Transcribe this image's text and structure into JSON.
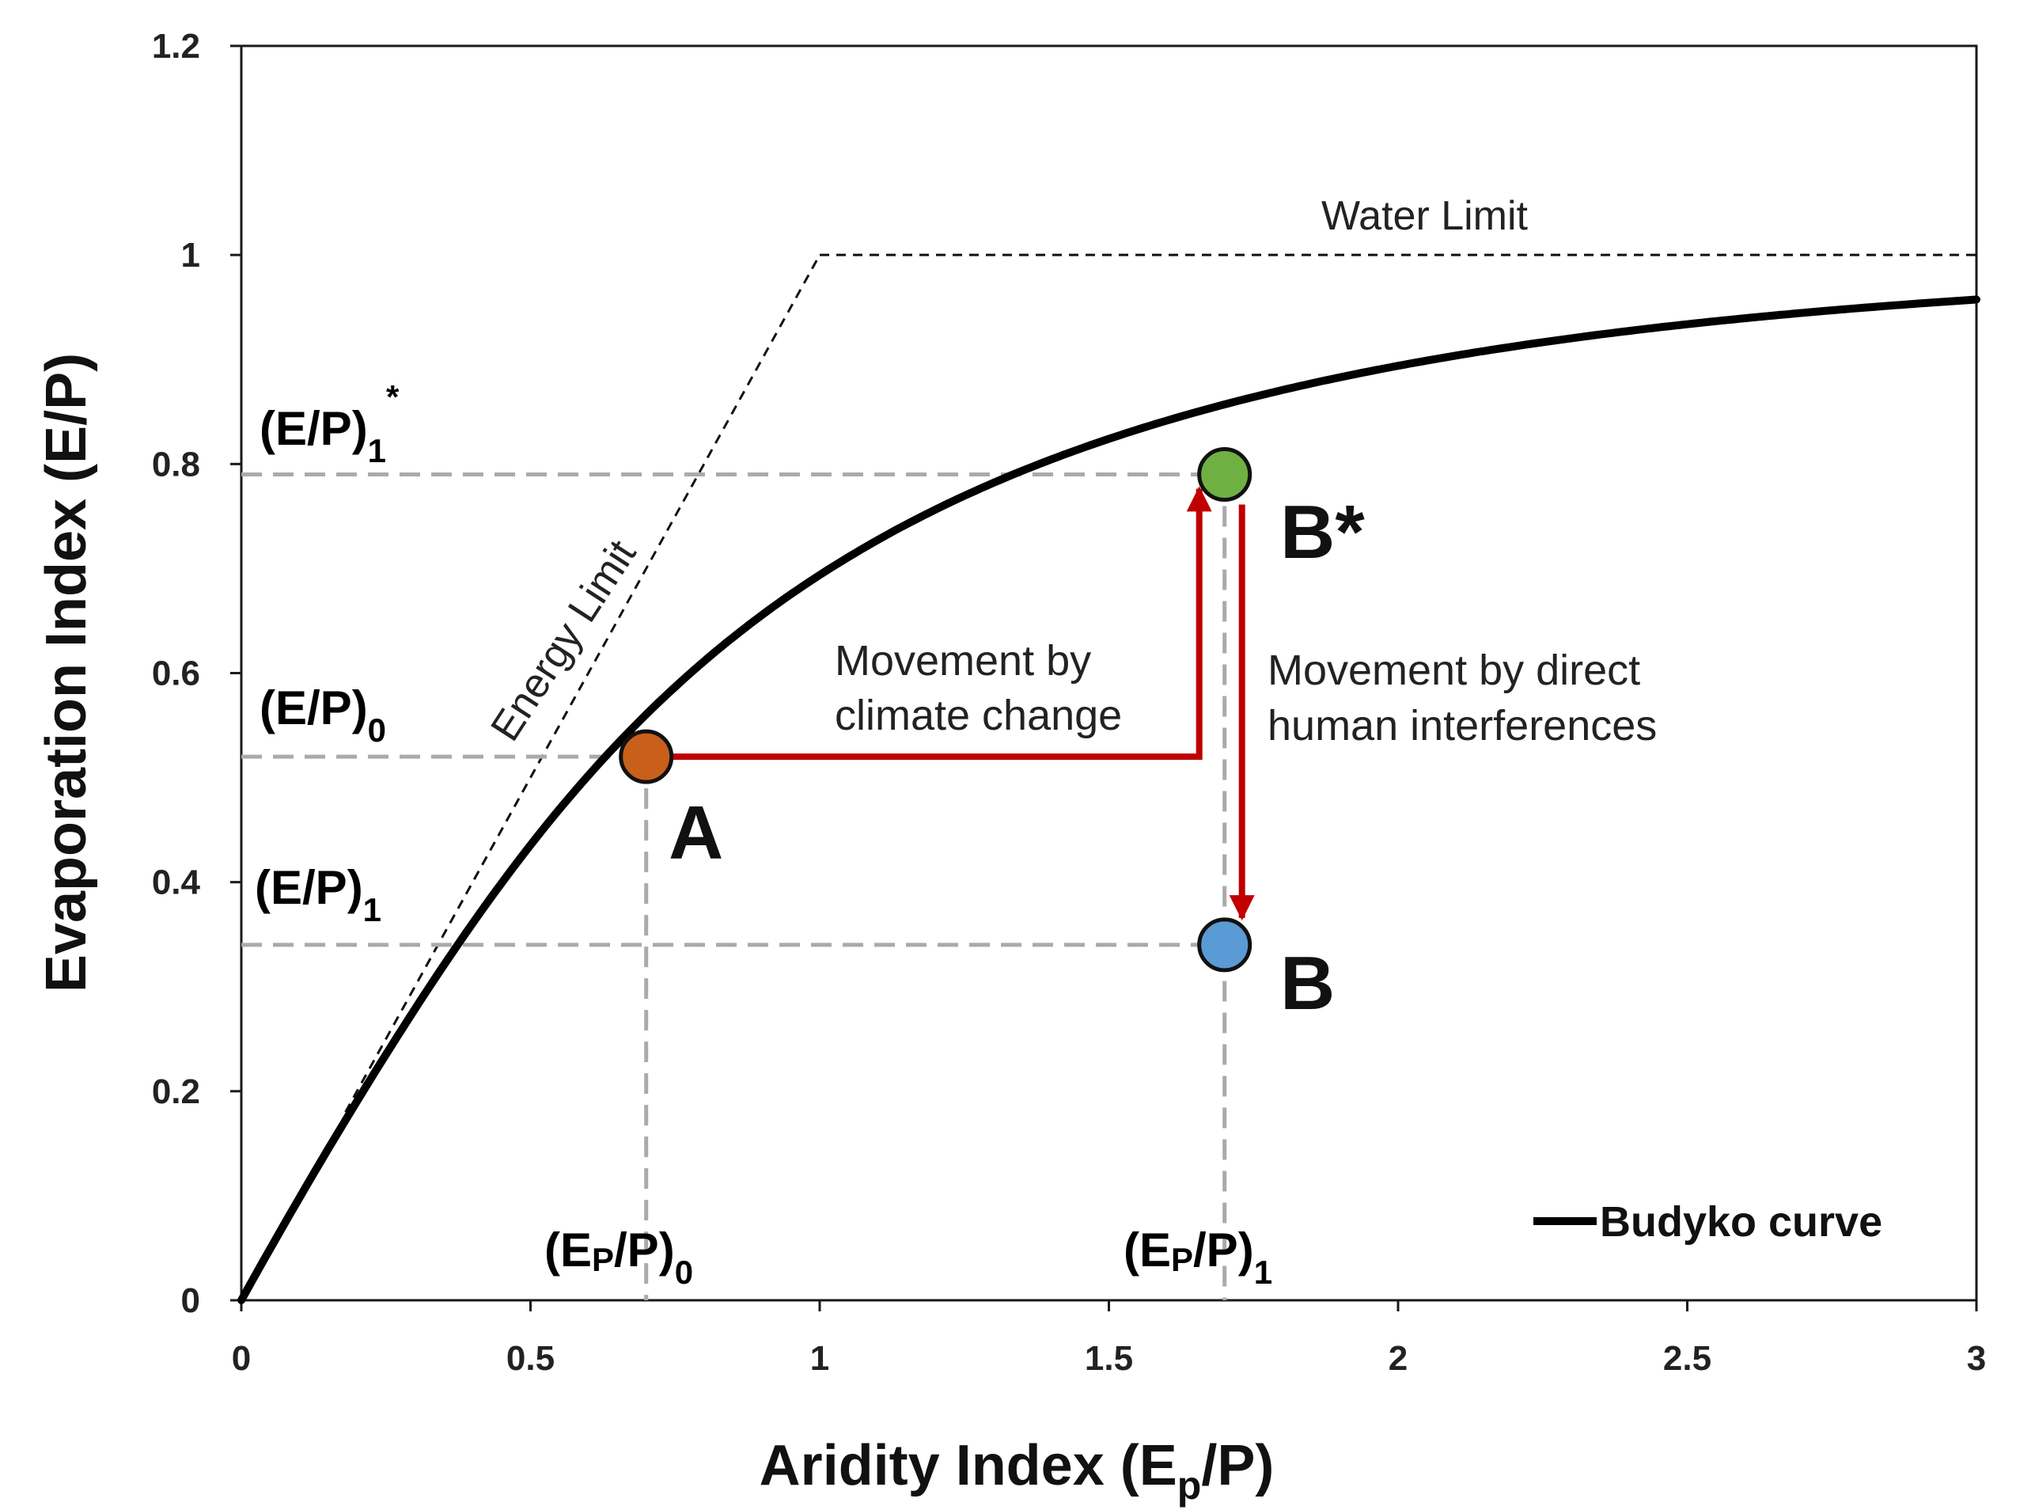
{
  "chart_data": {
    "type": "line",
    "title": "",
    "xlabel": {
      "main": "Aridity Index (E",
      "sub": "p",
      "tail": "/P)"
    },
    "ylabel": "Evaporation Index (E/P)",
    "xlim": [
      0,
      3
    ],
    "ylim": [
      0,
      1.2
    ],
    "xticks": [
      "0",
      "0.5",
      "1",
      "1.5",
      "2",
      "2.5",
      "3"
    ],
    "xtick_values": [
      0,
      0.5,
      1,
      1.5,
      2,
      2.5,
      3
    ],
    "yticks": [
      "0",
      "0.2",
      "0.4",
      "0.6",
      "0.8",
      "1",
      "1.2"
    ],
    "ytick_values": [
      0,
      0.2,
      0.4,
      0.6,
      0.8,
      1.0,
      1.2
    ],
    "grid": false,
    "series": [
      {
        "name": "Budyko curve",
        "kind": "budyko",
        "x_range": [
          0,
          3
        ],
        "color": "#000000"
      }
    ],
    "limits": {
      "energy": {
        "label": "Energy Limit",
        "x": [
          0.18,
          1.0
        ],
        "y": [
          0.18,
          1.0
        ]
      },
      "water": {
        "label": "Water Limit",
        "x": [
          1.0,
          3.0
        ],
        "y": [
          1.0,
          1.0
        ]
      }
    },
    "points": [
      {
        "label": "A",
        "x": 0.7,
        "y": 0.52,
        "color": "#c8601c"
      },
      {
        "label": "B*",
        "x": 1.7,
        "y": 0.79,
        "color": "#6fb043"
      },
      {
        "label": "B",
        "x": 1.7,
        "y": 0.34,
        "color": "#5b9bd5"
      }
    ],
    "reference_labels": {
      "ep_p0": {
        "main": "(E",
        "sub": "P",
        "close": "/P)",
        "index": "0",
        "x": 0.7
      },
      "ep_p1": {
        "main": "(E",
        "sub": "P",
        "close": "/P)",
        "index": "1",
        "x": 1.7
      },
      "ep0": {
        "main": "(E/P)",
        "index": "0",
        "y": 0.52
      },
      "ep1star": {
        "main": "(E/P)",
        "index": "1",
        "star": "*",
        "y": 0.79
      },
      "ep1": {
        "main": "(E/P)",
        "index": "1",
        "y": 0.34
      }
    },
    "annotations": {
      "climate": [
        "Movement by",
        "climate change"
      ],
      "human": [
        "Movement by direct",
        "human interferences"
      ]
    },
    "legend": {
      "label": "Budyko curve",
      "position": "bottom-right"
    },
    "colors": {
      "curve": "#000000",
      "arrow": "#c00000",
      "red_text": "#c00000",
      "guide": "#aaaaaa",
      "limit": "#111111"
    }
  }
}
